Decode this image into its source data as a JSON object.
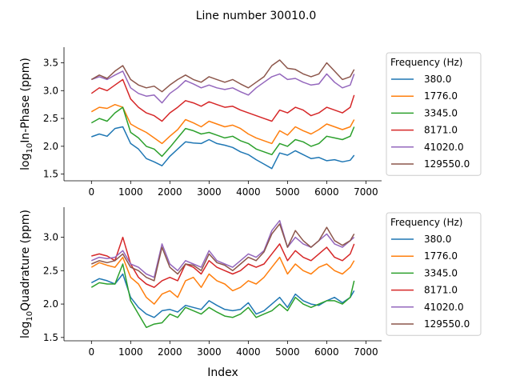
{
  "figure_title": "Line number 30010.0",
  "chart_data": [
    {
      "type": "line",
      "xlabel": "Index",
      "ylabel_main": "In-Phase (ppm)",
      "ylabel_prefix": "log",
      "ylabel_sub": "10",
      "xlim": [
        -700,
        7400
      ],
      "ylim": [
        1.38,
        3.78
      ],
      "xticks": [
        0,
        1000,
        2000,
        3000,
        4000,
        5000,
        6000,
        7000
      ],
      "yticks": [
        1.5,
        2.0,
        2.5,
        3.0,
        3.5
      ],
      "ytick_labels": [
        "1.5",
        "2.0",
        "2.5",
        "3.0",
        "3.5"
      ],
      "legend": {
        "title": "Frequency (Hz)",
        "placement": "outside-right"
      },
      "x": [
        0,
        200,
        400,
        600,
        800,
        1000,
        1200,
        1400,
        1600,
        1800,
        2000,
        2200,
        2400,
        2600,
        2800,
        3000,
        3200,
        3400,
        3600,
        3800,
        4000,
        4200,
        4400,
        4600,
        4800,
        5000,
        5200,
        5400,
        5600,
        5800,
        6000,
        6200,
        6400,
        6600,
        6700
      ],
      "series": [
        {
          "name": "380.0",
          "color": "#1f77b4",
          "values": [
            2.17,
            2.22,
            2.18,
            2.32,
            2.35,
            2.05,
            1.95,
            1.78,
            1.72,
            1.65,
            1.82,
            1.95,
            2.08,
            2.06,
            2.05,
            2.12,
            2.05,
            2.02,
            1.98,
            1.9,
            1.85,
            1.76,
            1.68,
            1.6,
            1.88,
            1.84,
            1.92,
            1.85,
            1.78,
            1.8,
            1.74,
            1.76,
            1.72,
            1.75,
            1.84
          ]
        },
        {
          "name": "1776.0",
          "color": "#ff7f0e",
          "values": [
            2.62,
            2.7,
            2.68,
            2.75,
            2.7,
            2.4,
            2.32,
            2.25,
            2.15,
            2.05,
            2.18,
            2.3,
            2.48,
            2.42,
            2.35,
            2.45,
            2.4,
            2.35,
            2.38,
            2.32,
            2.22,
            2.15,
            2.1,
            2.05,
            2.28,
            2.2,
            2.35,
            2.28,
            2.22,
            2.3,
            2.4,
            2.35,
            2.3,
            2.35,
            2.48
          ]
        },
        {
          "name": "3345.0",
          "color": "#2ca02c",
          "values": [
            2.42,
            2.5,
            2.45,
            2.6,
            2.7,
            2.25,
            2.15,
            2.0,
            1.95,
            1.82,
            1.98,
            2.15,
            2.32,
            2.28,
            2.22,
            2.25,
            2.2,
            2.15,
            2.18,
            2.1,
            2.05,
            1.95,
            1.9,
            1.85,
            2.05,
            2.0,
            2.12,
            2.08,
            2.0,
            2.05,
            2.18,
            2.15,
            2.12,
            2.18,
            2.35
          ]
        },
        {
          "name": "8171.0",
          "color": "#d62728",
          "values": [
            2.95,
            3.05,
            3.0,
            3.1,
            3.2,
            2.85,
            2.7,
            2.6,
            2.55,
            2.45,
            2.6,
            2.7,
            2.82,
            2.78,
            2.72,
            2.8,
            2.75,
            2.7,
            2.72,
            2.65,
            2.6,
            2.55,
            2.5,
            2.45,
            2.65,
            2.6,
            2.7,
            2.65,
            2.55,
            2.6,
            2.7,
            2.65,
            2.6,
            2.7,
            2.92
          ]
        },
        {
          "name": "41020.0",
          "color": "#9467bd",
          "values": [
            3.2,
            3.25,
            3.2,
            3.28,
            3.35,
            3.05,
            2.95,
            2.9,
            2.92,
            2.78,
            2.95,
            3.05,
            3.18,
            3.12,
            3.05,
            3.1,
            3.05,
            3.02,
            3.05,
            2.98,
            2.92,
            3.05,
            3.15,
            3.25,
            3.3,
            3.2,
            3.22,
            3.15,
            3.1,
            3.12,
            3.3,
            3.15,
            3.05,
            3.1,
            3.3
          ]
        },
        {
          "name": "129550.0",
          "color": "#8c564b",
          "values": [
            3.2,
            3.28,
            3.22,
            3.35,
            3.45,
            3.2,
            3.1,
            3.05,
            3.08,
            2.98,
            3.1,
            3.2,
            3.28,
            3.2,
            3.15,
            3.25,
            3.2,
            3.15,
            3.2,
            3.12,
            3.05,
            3.15,
            3.25,
            3.45,
            3.55,
            3.4,
            3.38,
            3.3,
            3.25,
            3.3,
            3.5,
            3.35,
            3.2,
            3.25,
            3.38
          ]
        }
      ]
    },
    {
      "type": "line",
      "xlabel": "Index",
      "ylabel_main": "Quadrature (ppm)",
      "ylabel_prefix": "log",
      "ylabel_sub": "10",
      "xlim": [
        -700,
        7400
      ],
      "ylim": [
        1.45,
        3.45
      ],
      "xticks": [
        0,
        1000,
        2000,
        3000,
        4000,
        5000,
        6000,
        7000
      ],
      "yticks": [
        1.5,
        2.0,
        2.5,
        3.0
      ],
      "ytick_labels": [
        "1.5",
        "2.0",
        "2.5",
        "3.0"
      ],
      "legend": {
        "title": "Frequency (Hz)",
        "placement": "outside-right"
      },
      "x": [
        0,
        200,
        400,
        600,
        800,
        1000,
        1200,
        1400,
        1600,
        1800,
        2000,
        2200,
        2400,
        2600,
        2800,
        3000,
        3200,
        3400,
        3600,
        3800,
        4000,
        4200,
        4400,
        4600,
        4800,
        5000,
        5200,
        5400,
        5600,
        5800,
        6000,
        6200,
        6400,
        6600,
        6700
      ],
      "series": [
        {
          "name": "380.0",
          "color": "#1f77b4",
          "values": [
            2.32,
            2.38,
            2.35,
            2.3,
            2.45,
            2.1,
            1.95,
            1.85,
            1.8,
            1.9,
            1.92,
            1.88,
            1.98,
            1.95,
            1.92,
            2.05,
            1.98,
            1.92,
            1.9,
            1.92,
            2.02,
            1.85,
            1.9,
            2.0,
            2.1,
            1.95,
            2.15,
            2.05,
            2.0,
            1.98,
            2.05,
            2.1,
            2.02,
            2.1,
            2.2
          ]
        },
        {
          "name": "1776.0",
          "color": "#ff7f0e",
          "values": [
            2.55,
            2.62,
            2.58,
            2.55,
            2.7,
            2.4,
            2.3,
            2.1,
            2.0,
            2.15,
            2.2,
            2.1,
            2.35,
            2.4,
            2.25,
            2.45,
            2.35,
            2.3,
            2.2,
            2.25,
            2.35,
            2.3,
            2.4,
            2.55,
            2.7,
            2.45,
            2.6,
            2.5,
            2.45,
            2.55,
            2.6,
            2.5,
            2.45,
            2.55,
            2.65
          ]
        },
        {
          "name": "3345.0",
          "color": "#2ca02c",
          "values": [
            2.25,
            2.32,
            2.3,
            2.3,
            2.6,
            2.05,
            1.85,
            1.65,
            1.7,
            1.72,
            1.85,
            1.8,
            1.95,
            1.9,
            1.85,
            1.95,
            1.88,
            1.82,
            1.8,
            1.85,
            1.95,
            1.8,
            1.85,
            1.9,
            2.0,
            1.9,
            2.1,
            2.0,
            1.95,
            2.0,
            2.05,
            2.05,
            2.0,
            2.1,
            2.35
          ]
        },
        {
          "name": "8171.0",
          "color": "#d62728",
          "values": [
            2.72,
            2.75,
            2.72,
            2.65,
            3.0,
            2.6,
            2.4,
            2.3,
            2.25,
            2.35,
            2.4,
            2.35,
            2.6,
            2.55,
            2.45,
            2.65,
            2.55,
            2.5,
            2.45,
            2.5,
            2.6,
            2.55,
            2.6,
            2.75,
            2.9,
            2.65,
            2.8,
            2.7,
            2.65,
            2.75,
            2.85,
            2.7,
            2.65,
            2.75,
            2.9
          ]
        },
        {
          "name": "41020.0",
          "color": "#9467bd",
          "values": [
            2.65,
            2.7,
            2.68,
            2.7,
            2.8,
            2.6,
            2.55,
            2.45,
            2.4,
            2.9,
            2.6,
            2.5,
            2.65,
            2.6,
            2.55,
            2.8,
            2.65,
            2.6,
            2.55,
            2.65,
            2.75,
            2.7,
            2.8,
            3.1,
            3.25,
            2.85,
            3.0,
            2.9,
            2.85,
            2.95,
            3.05,
            2.9,
            2.85,
            2.95,
            3.0
          ]
        },
        {
          "name": "129550.0",
          "color": "#8c564b",
          "values": [
            2.6,
            2.65,
            2.62,
            2.65,
            2.75,
            2.55,
            2.5,
            2.4,
            2.35,
            2.85,
            2.55,
            2.45,
            2.6,
            2.58,
            2.5,
            2.75,
            2.62,
            2.58,
            2.5,
            2.6,
            2.7,
            2.65,
            2.78,
            3.05,
            3.2,
            2.85,
            3.1,
            2.95,
            2.85,
            2.95,
            3.15,
            2.95,
            2.88,
            2.95,
            3.05
          ]
        }
      ]
    }
  ]
}
